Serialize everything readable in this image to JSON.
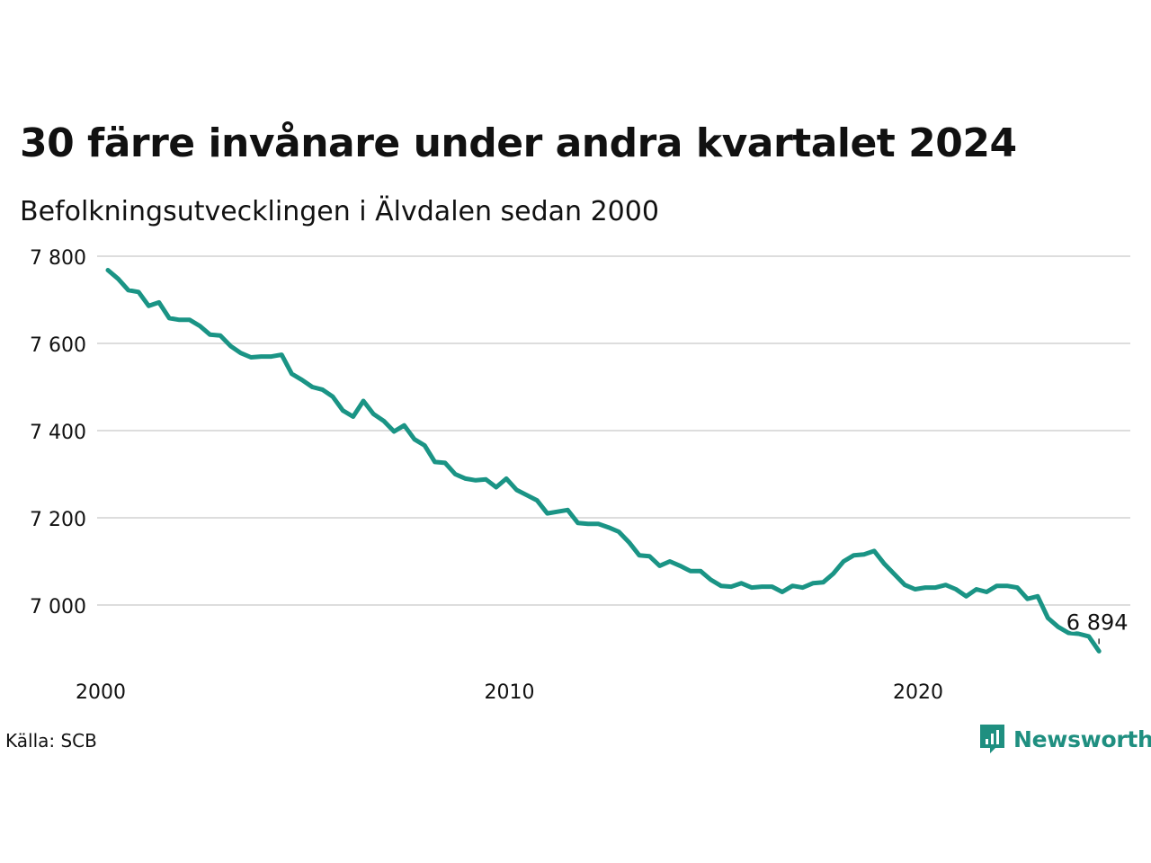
{
  "title": "30 färre invånare under andra kvartalet 2024",
  "subtitle": "Befolkningsutvecklingen i Älvdalen sedan 2000",
  "source": "Källa: SCB",
  "brand": {
    "name": "Newsworthy",
    "icon": "newsworthy-logo-icon",
    "color": "#1f8f80"
  },
  "colors": {
    "line": "#1a9485",
    "grid": "#dddddd",
    "text": "#111111"
  },
  "chart_data": {
    "type": "line",
    "title": "30 färre invånare under andra kvartalet 2024",
    "subtitle": "Befolkningsutvecklingen i Älvdalen sedan 2000",
    "xlabel": "",
    "ylabel": "",
    "x_ticks": [
      2000,
      2010,
      2020
    ],
    "x_tick_labels": [
      "2000",
      "2010",
      "2020"
    ],
    "y_ticks": [
      7000,
      7200,
      7400,
      7600,
      7800
    ],
    "y_tick_labels": [
      "7 000",
      "7 200",
      "7 400",
      "7 600",
      "7 800"
    ],
    "xlim": [
      2000,
      2025
    ],
    "ylim": [
      6880,
      7800
    ],
    "grid": true,
    "annotation": {
      "label": "6 894",
      "x": 2024.25,
      "y": 6894
    },
    "series": [
      {
        "x": [
          2000.0,
          2000.25,
          2000.5,
          2000.75,
          2001.0,
          2001.25,
          2001.5,
          2001.75,
          2002.0,
          2002.25,
          2002.5,
          2002.75,
          2003.0,
          2003.25,
          2003.5,
          2003.75,
          2004.0,
          2004.25,
          2004.5,
          2004.75,
          2005.0,
          2005.25,
          2005.5,
          2005.75,
          2006.0,
          2006.25,
          2006.5,
          2006.75,
          2007.0,
          2007.25,
          2007.5,
          2007.75,
          2008.0,
          2008.25,
          2008.5,
          2008.75,
          2009.0,
          2009.25,
          2009.5,
          2009.75,
          2010.0,
          2010.25,
          2010.5,
          2010.75,
          2011.0,
          2011.25,
          2011.5,
          2011.75,
          2012.0,
          2012.25,
          2012.5,
          2012.75,
          2013.0,
          2013.25,
          2013.5,
          2013.75,
          2014.0,
          2014.25,
          2014.5,
          2014.75,
          2015.0,
          2015.25,
          2015.5,
          2015.75,
          2016.0,
          2016.25,
          2016.5,
          2016.75,
          2017.0,
          2017.25,
          2017.5,
          2017.75,
          2018.0,
          2018.25,
          2018.5,
          2018.75,
          2019.0,
          2019.25,
          2019.5,
          2019.75,
          2020.0,
          2020.25,
          2020.5,
          2020.75,
          2021.0,
          2021.25,
          2021.5,
          2021.75,
          2022.0,
          2022.25,
          2022.5,
          2022.75,
          2023.0,
          2023.25,
          2023.5,
          2023.75,
          2024.0,
          2024.25
        ],
        "values": [
          7768,
          7748,
          7722,
          7718,
          7686,
          7694,
          7658,
          7654,
          7654,
          7640,
          7620,
          7618,
          7594,
          7578,
          7568,
          7570,
          7570,
          7574,
          7530,
          7516,
          7500,
          7494,
          7478,
          7446,
          7432,
          7468,
          7438,
          7422,
          7398,
          7412,
          7380,
          7366,
          7328,
          7326,
          7300,
          7290,
          7286,
          7288,
          7270,
          7290,
          7264,
          7252,
          7240,
          7210,
          7214,
          7218,
          7188,
          7186,
          7186,
          7178,
          7168,
          7144,
          7114,
          7112,
          7090,
          7100,
          7090,
          7078,
          7078,
          7058,
          7044,
          7042,
          7050,
          7040,
          7042,
          7042,
          7030,
          7044,
          7040,
          7050,
          7052,
          7072,
          7100,
          7114,
          7116,
          7124,
          7094,
          7070,
          7046,
          7036,
          7040,
          7040,
          7046,
          7036,
          7020,
          7036,
          7030,
          7044,
          7044,
          7040,
          7014,
          7020,
          6970,
          6950,
          6936,
          6934,
          6928,
          6894
        ]
      }
    ]
  }
}
